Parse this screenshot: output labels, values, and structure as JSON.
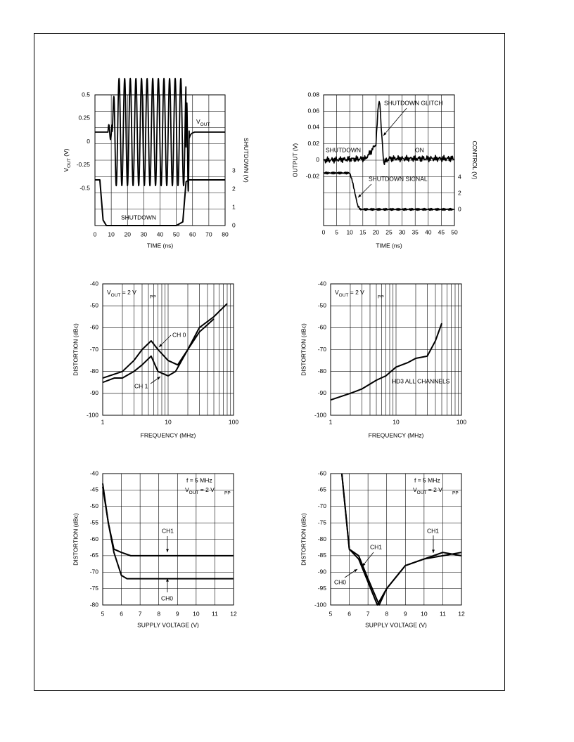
{
  "chart_data": [
    {
      "type": "line",
      "xlabel": "TIME (ns)",
      "ylabel": "VOUT (V)",
      "y2label": "SHUTDOWN (V)",
      "xlim": [
        0,
        80
      ],
      "x_ticks": [
        0,
        10,
        20,
        30,
        40,
        50,
        60,
        70,
        80
      ],
      "y_ticks": [
        "0.5",
        "0.25",
        "0",
        "-0.25",
        "-0.5"
      ],
      "y2_ticks": [
        "3",
        "2",
        "1",
        "0"
      ],
      "annotations": [
        "VOUT",
        "SHUTDOWN"
      ],
      "series": [
        {
          "name": "VOUT",
          "x": [
            0,
            8,
            10,
            12,
            13,
            56,
            57,
            58,
            60,
            80
          ],
          "y": [
            0,
            0,
            0.03,
            0.36,
            "±0.36 (~2.1 ns period)",
            -0.1,
            0.36,
            -0.05,
            0,
            0
          ]
        },
        {
          "name": "SHUTDOWN",
          "x": [
            0,
            3,
            5,
            7,
            50,
            54,
            56,
            58,
            80
          ],
          "y": [
            2.5,
            2.5,
            0.3,
            0,
            0,
            0.2,
            2.4,
            2.5,
            2.5
          ]
        }
      ]
    },
    {
      "type": "line",
      "xlabel": "TIME (ns)",
      "ylabel": "OUTPUT (V)",
      "y2label": "CONTROL (V)",
      "xlim": [
        0,
        50
      ],
      "x_ticks": [
        0,
        5,
        10,
        15,
        20,
        25,
        30,
        35,
        40,
        45,
        50
      ],
      "y_ticks": [
        "0.08",
        "0.06",
        "0.04",
        "0.02",
        "0",
        "-0.02"
      ],
      "y2_ticks": [
        "4",
        "2",
        "0"
      ],
      "annotations": [
        "SHUTDOWN GLITCH",
        "SHUTDOWN",
        "ON",
        "SHUTDOWN SIGNAL"
      ],
      "series": [
        {
          "name": "OUTPUT",
          "x": [
            0,
            16,
            18,
            19,
            20,
            21,
            21.5,
            22,
            23,
            25,
            50
          ],
          "y": [
            0,
            0.002,
            0.01,
            0.015,
            0.02,
            0.07,
            0.072,
            0.04,
            -0.003,
            0.002,
            0.002
          ]
        },
        {
          "name": "CONTROL",
          "x": [
            0,
            10,
            11,
            12,
            13,
            14,
            50
          ],
          "y": [
            4.5,
            4.5,
            3.5,
            2,
            0.5,
            0,
            0
          ]
        }
      ]
    },
    {
      "type": "line",
      "xscale": "log",
      "xlabel": "FREQUENCY (MHz)",
      "ylabel": "DISTORTION (dBc)",
      "xlim": [
        1,
        100
      ],
      "ylim": [
        -100,
        -40
      ],
      "x_ticks": [
        "1",
        "10",
        "100"
      ],
      "y_ticks": [
        "-40",
        "-50",
        "-60",
        "-70",
        "-80",
        "-90",
        "-100"
      ],
      "annotations": [
        "VOUT = 2 VPP",
        "CH 0",
        "CH 1"
      ],
      "series": [
        {
          "name": "CH 0",
          "x": [
            1,
            2,
            3,
            4,
            5.5,
            7,
            10,
            14,
            20,
            30,
            50,
            80
          ],
          "y": [
            -83,
            -80,
            -75,
            -70,
            -66,
            -70,
            -75,
            -77,
            -70,
            -60,
            -55,
            -49
          ]
        },
        {
          "name": "CH 1",
          "x": [
            1,
            1.5,
            2,
            3,
            4,
            5.5,
            7,
            10,
            13,
            20,
            30,
            50
          ],
          "y": [
            -85,
            -83,
            -83,
            -80,
            -77,
            -73,
            -80,
            -82,
            -80,
            -70,
            -62,
            -56
          ]
        }
      ]
    },
    {
      "type": "line",
      "xscale": "log",
      "xlabel": "FREQUENCY (MHz)",
      "ylabel": "DISTORTION (dBc)",
      "xlim": [
        1,
        100
      ],
      "ylim": [
        -100,
        -40
      ],
      "x_ticks": [
        "1",
        "10",
        "100"
      ],
      "y_ticks": [
        "-40",
        "-50",
        "-60",
        "-70",
        "-80",
        "-90",
        "-100"
      ],
      "annotations": [
        "VOUT = 2 VPP",
        "HD3 ALL CHANNELS"
      ],
      "series": [
        {
          "name": "HD3 ALL CHANNELS",
          "x": [
            1,
            2,
            3,
            5,
            7,
            10,
            15,
            20,
            30,
            40,
            50
          ],
          "y": [
            -93,
            -90,
            -88,
            -84,
            -82,
            -78,
            -76,
            -74,
            -73,
            -66,
            -58
          ]
        }
      ]
    },
    {
      "type": "line",
      "xlabel": "SUPPLY VOLTAGE (V)",
      "ylabel": "DISTORTION (dBc)",
      "xlim": [
        5,
        12
      ],
      "ylim": [
        -80,
        -40
      ],
      "x_ticks": [
        "5",
        "6",
        "7",
        "8",
        "9",
        "10",
        "11",
        "12"
      ],
      "y_ticks": [
        "-40",
        "-45",
        "-50",
        "-55",
        "-60",
        "-65",
        "-70",
        "-75",
        "-80"
      ],
      "annotations": [
        "f = 5 MHz",
        "VOUT = 2 VPP",
        "CH1",
        "CH0"
      ],
      "series": [
        {
          "name": "CH1",
          "x": [
            5,
            5.3,
            5.6,
            6,
            6.5,
            7,
            12
          ],
          "y": [
            -43,
            -55,
            -63,
            -64,
            -65,
            -65,
            -65
          ]
        },
        {
          "name": "CH0",
          "x": [
            5,
            5.3,
            5.6,
            6,
            6.3,
            7,
            12
          ],
          "y": [
            -44,
            -55,
            -64,
            -71,
            -72,
            -72,
            -72
          ]
        }
      ]
    },
    {
      "type": "line",
      "xlabel": "SUPPLY VOLTAGE (V)",
      "ylabel": "DISTORTION (dBc)",
      "xlim": [
        5,
        12
      ],
      "ylim": [
        -100,
        -60
      ],
      "x_ticks": [
        "5",
        "6",
        "7",
        "8",
        "9",
        "10",
        "11",
        "12"
      ],
      "y_ticks": [
        "-60",
        "-65",
        "-70",
        "-75",
        "-80",
        "-85",
        "-90",
        "-95",
        "-100"
      ],
      "annotations": [
        "f = 5 MHz",
        "VOUT = 2 VPP",
        "CH1",
        "CH0"
      ],
      "series": [
        {
          "name": "CH1",
          "x": [
            5.6,
            6,
            6.5,
            7,
            7.5,
            8,
            9,
            10,
            11,
            12
          ],
          "y": [
            -60,
            -83,
            -86,
            -93,
            -100,
            -95,
            -88,
            -86,
            -84,
            -85
          ]
        },
        {
          "name": "CH0",
          "x": [
            5.6,
            6,
            6.5,
            7,
            7.6,
            8,
            9,
            10,
            11,
            12
          ],
          "y": [
            -60,
            -83,
            -85,
            -92,
            -100,
            -95,
            -88,
            -86,
            -85,
            -84
          ]
        }
      ]
    }
  ]
}
